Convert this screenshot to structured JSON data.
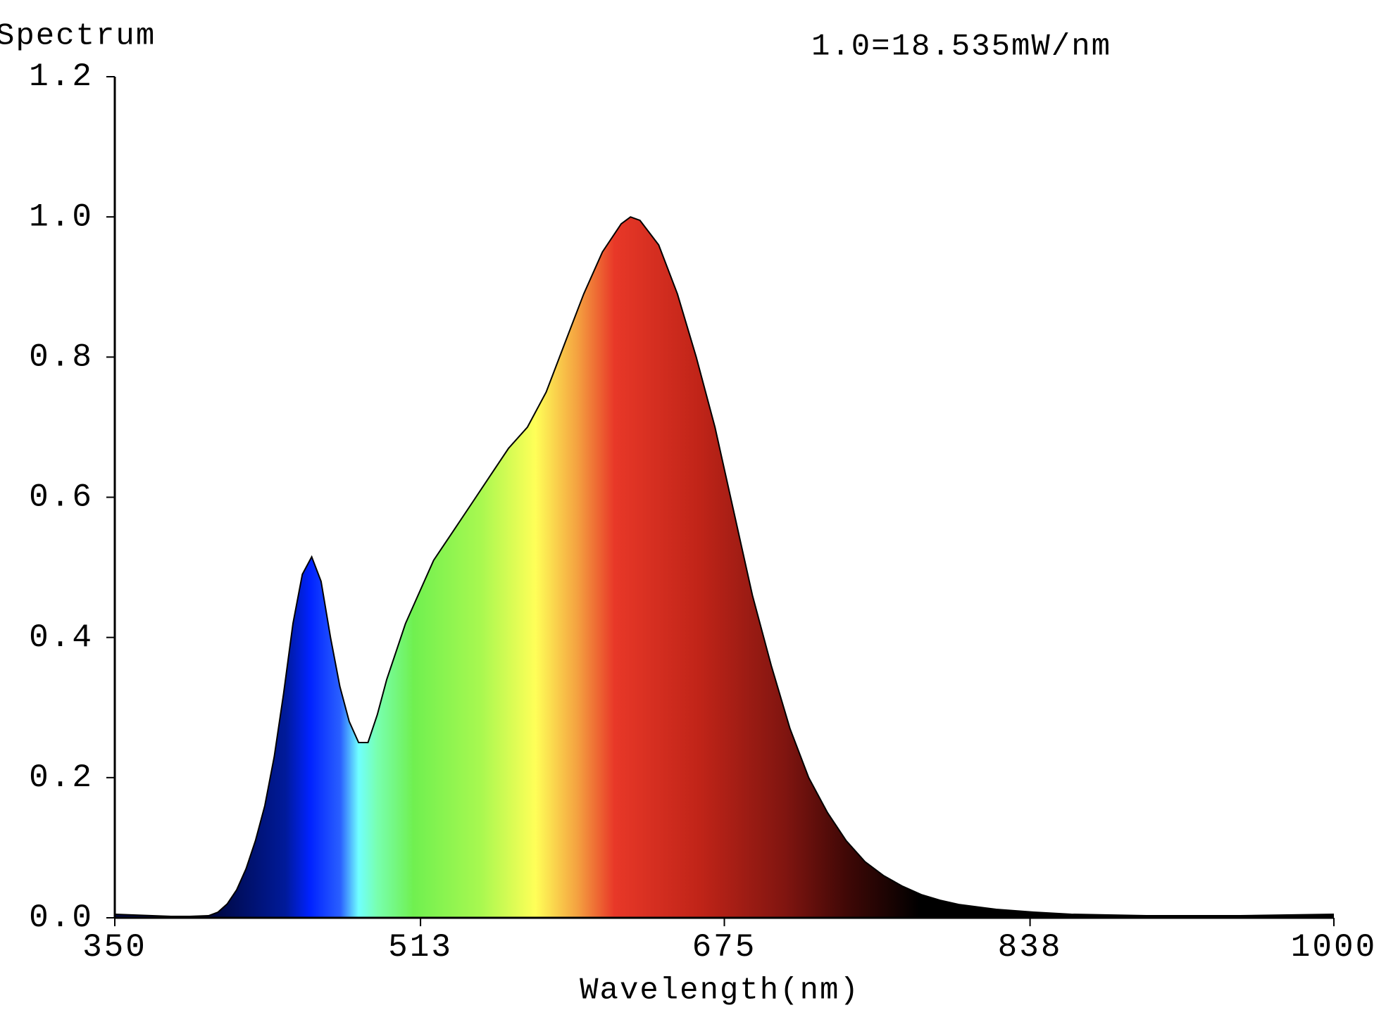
{
  "chart_data": {
    "type": "area",
    "title": "Spectrum",
    "annotation": "1.0=18.535mW/nm",
    "x_label": "Wavelength(nm)",
    "x": [
      350,
      360,
      370,
      380,
      390,
      400,
      405,
      410,
      415,
      420,
      425,
      430,
      435,
      440,
      445,
      450,
      455,
      460,
      465,
      470,
      475,
      480,
      485,
      490,
      495,
      500,
      505,
      510,
      520,
      530,
      540,
      550,
      560,
      570,
      580,
      590,
      600,
      610,
      620,
      625,
      630,
      640,
      650,
      660,
      670,
      680,
      690,
      700,
      710,
      720,
      730,
      740,
      750,
      760,
      770,
      780,
      790,
      800,
      820,
      840,
      860,
      880,
      900,
      950,
      1000
    ],
    "values": [
      0.005,
      0.004,
      0.003,
      0.002,
      0.002,
      0.003,
      0.008,
      0.02,
      0.04,
      0.07,
      0.11,
      0.16,
      0.23,
      0.32,
      0.42,
      0.49,
      0.515,
      0.48,
      0.4,
      0.33,
      0.28,
      0.25,
      0.25,
      0.29,
      0.34,
      0.38,
      0.42,
      0.45,
      0.51,
      0.55,
      0.59,
      0.63,
      0.67,
      0.7,
      0.75,
      0.82,
      0.89,
      0.95,
      0.99,
      1.0,
      0.995,
      0.96,
      0.89,
      0.8,
      0.7,
      0.58,
      0.46,
      0.36,
      0.27,
      0.2,
      0.15,
      0.11,
      0.08,
      0.06,
      0.045,
      0.033,
      0.025,
      0.019,
      0.012,
      0.008,
      0.005,
      0.004,
      0.003,
      0.003,
      0.005
    ],
    "xlim": [
      350,
      1000
    ],
    "xticks": [
      350,
      513,
      675,
      838,
      1000
    ],
    "ylim": [
      0,
      1.2
    ],
    "yticks": [
      {
        "value": 0,
        "label": "0.0"
      },
      {
        "value": 0.2,
        "label": "0.2"
      },
      {
        "value": 0.4,
        "label": "0.4"
      },
      {
        "value": 0.6,
        "label": "0.6"
      },
      {
        "value": 0.8,
        "label": "0.8"
      },
      {
        "value": 1,
        "label": "1.0"
      },
      {
        "value": 1.2,
        "label": "1.2"
      }
    ]
  }
}
